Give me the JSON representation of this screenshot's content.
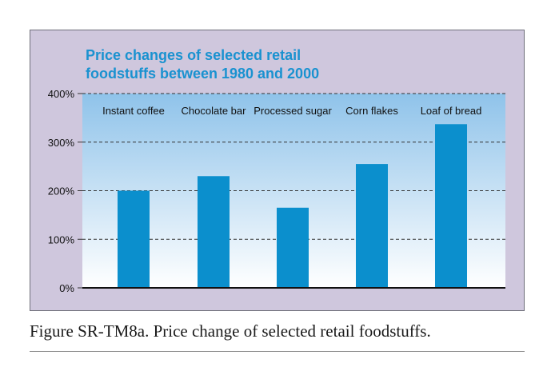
{
  "chart_data": {
    "type": "bar",
    "title_lines": [
      "Price changes of selected retail",
      "foodstuffs between 1980 and 2000"
    ],
    "categories": [
      "Instant coffee",
      "Chocolate bar",
      "Processed sugar",
      "Corn flakes",
      "Loaf of bread"
    ],
    "values": [
      200,
      230,
      165,
      255,
      337
    ],
    "y_unit": "%",
    "yticks": [
      "0%",
      "100%",
      "200%",
      "300%",
      "400%"
    ],
    "ylim": [
      0,
      400
    ],
    "grid": "dashed horizontal",
    "legend": "none",
    "category_labels_position": "top",
    "colors": {
      "bar": "#0b8fcd",
      "panel": "#cfc7dd",
      "plot_top": "#8fc3ea",
      "plot_bottom": "#ffffff",
      "title": "#1a92d0"
    }
  },
  "caption": "Figure SR-TM8a. Price change of selected retail foodstuffs."
}
